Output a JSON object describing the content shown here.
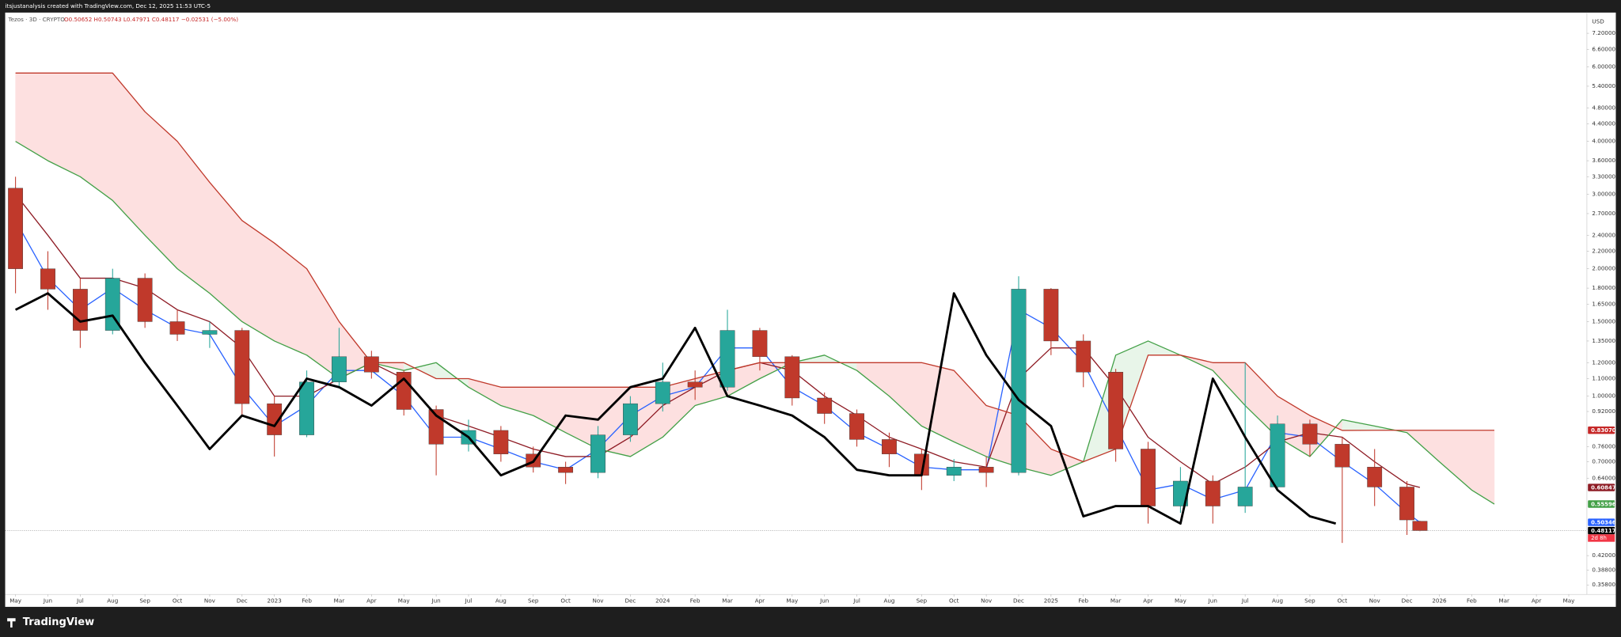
{
  "header": {
    "author_line": "itsjustanalysis created with TradingView.com, Dec 12, 2025 11:53 UTC-5"
  },
  "footer": {
    "brand": "TradingView"
  },
  "chart_data": {
    "type": "candlestick",
    "title": "Tezos · 3D · CRYPTO",
    "ohlc_text": "O0.50652 H0.50743 L0.47971 C0.48117 −0.02531 (−5.00%)",
    "currency": "USD",
    "log_scale": true,
    "grid": false,
    "candles": {
      "x": [
        0,
        1,
        2,
        3,
        4,
        5,
        6,
        7,
        8,
        9,
        10,
        11,
        12,
        13,
        14,
        15,
        16,
        17,
        18,
        19,
        20,
        21,
        22,
        23,
        24,
        25,
        26,
        27,
        28,
        29,
        30,
        31,
        32,
        33,
        34,
        35,
        36,
        37,
        38,
        39,
        40,
        41,
        42,
        43,
        43.4
      ],
      "open": [
        3.1,
        2.0,
        1.79,
        1.43,
        1.9,
        1.5,
        1.4,
        1.43,
        0.96,
        0.81,
        1.08,
        1.24,
        1.14,
        0.93,
        0.77,
        0.83,
        0.73,
        0.68,
        0.66,
        0.81,
        0.96,
        1.08,
        1.05,
        1.43,
        1.24,
        0.99,
        0.91,
        0.79,
        0.73,
        0.65,
        0.68,
        0.66,
        1.79,
        1.35,
        1.14,
        0.75,
        0.55,
        0.63,
        0.55,
        0.61,
        0.86,
        0.77,
        0.68,
        0.61,
        0.50652
      ],
      "high": [
        3.3,
        2.2,
        1.9,
        2.0,
        1.95,
        1.6,
        1.5,
        1.45,
        1.0,
        1.15,
        1.45,
        1.28,
        1.15,
        0.95,
        0.88,
        0.85,
        0.76,
        0.7,
        0.85,
        1.0,
        1.2,
        1.15,
        1.6,
        1.45,
        1.25,
        1.02,
        0.93,
        0.82,
        0.75,
        0.71,
        0.72,
        1.92,
        1.8,
        1.4,
        1.16,
        0.78,
        0.68,
        0.65,
        1.2,
        0.9,
        0.88,
        0.8,
        0.75,
        0.63,
        0.50743
      ],
      "low": [
        1.75,
        1.6,
        1.3,
        1.4,
        1.45,
        1.35,
        1.3,
        0.9,
        0.72,
        0.8,
        1.05,
        1.1,
        0.9,
        0.65,
        0.74,
        0.7,
        0.66,
        0.62,
        0.64,
        0.78,
        0.92,
        0.98,
        1.03,
        1.15,
        0.95,
        0.86,
        0.76,
        0.68,
        0.6,
        0.63,
        0.61,
        0.65,
        1.25,
        1.05,
        0.7,
        0.5,
        0.53,
        0.5,
        0.53,
        0.6,
        0.72,
        0.45,
        0.55,
        0.47,
        0.47971
      ],
      "close": [
        2.0,
        1.79,
        1.43,
        1.9,
        1.5,
        1.4,
        1.43,
        0.96,
        0.81,
        1.08,
        1.24,
        1.14,
        0.93,
        0.77,
        0.83,
        0.73,
        0.68,
        0.66,
        0.81,
        0.96,
        1.08,
        1.05,
        1.43,
        1.24,
        0.99,
        0.91,
        0.79,
        0.73,
        0.65,
        0.68,
        0.66,
        1.79,
        1.35,
        1.14,
        0.75,
        0.55,
        0.63,
        0.55,
        0.61,
        0.86,
        0.77,
        0.68,
        0.61,
        0.51,
        0.48117
      ],
      "up_color": "#26a69a",
      "down_color": "#c0392b"
    },
    "series": [
      {
        "color": "#2962ff",
        "width": 1,
        "x": [
          0,
          1,
          2,
          3,
          4,
          5,
          6,
          7,
          8,
          9,
          10,
          11,
          12,
          13,
          14,
          15,
          16,
          17,
          18,
          19,
          20,
          21,
          22,
          23,
          24,
          25,
          26,
          27,
          28,
          29,
          30,
          31,
          32,
          33,
          34,
          35,
          36,
          37,
          38,
          39,
          40,
          41,
          42,
          43,
          43.4
        ],
        "values": [
          2.6,
          1.9,
          1.6,
          1.8,
          1.6,
          1.45,
          1.4,
          1.05,
          0.85,
          0.95,
          1.15,
          1.15,
          1.0,
          0.8,
          0.8,
          0.75,
          0.7,
          0.67,
          0.75,
          0.9,
          1.0,
          1.05,
          1.3,
          1.3,
          1.05,
          0.95,
          0.82,
          0.75,
          0.68,
          0.67,
          0.67,
          1.6,
          1.45,
          1.2,
          0.85,
          0.6,
          0.62,
          0.57,
          0.6,
          0.82,
          0.8,
          0.7,
          0.62,
          0.53,
          0.50346
        ]
      },
      {
        "color": "#8e1b24",
        "width": 1,
        "x": [
          0,
          1,
          2,
          3,
          4,
          5,
          6,
          7,
          8,
          9,
          10,
          11,
          12,
          13,
          14,
          15,
          16,
          17,
          18,
          19,
          20,
          21,
          22,
          23,
          24,
          25,
          26,
          27,
          28,
          29,
          30,
          31,
          32,
          33,
          34,
          35,
          36,
          37,
          38,
          39,
          40,
          41,
          42,
          43,
          43.4
        ],
        "values": [
          3.0,
          2.4,
          1.9,
          1.9,
          1.8,
          1.6,
          1.5,
          1.3,
          1.0,
          1.0,
          1.1,
          1.2,
          1.1,
          0.9,
          0.85,
          0.8,
          0.75,
          0.72,
          0.72,
          0.8,
          0.95,
          1.05,
          1.15,
          1.2,
          1.15,
          1.0,
          0.9,
          0.8,
          0.75,
          0.7,
          0.68,
          1.1,
          1.3,
          1.3,
          1.05,
          0.8,
          0.7,
          0.62,
          0.68,
          0.78,
          0.82,
          0.8,
          0.7,
          0.62,
          0.60847
        ]
      },
      {
        "color": "#43a047",
        "width": 1,
        "x": [
          0,
          1,
          2,
          3,
          4,
          5,
          6,
          7,
          8,
          9,
          10,
          11,
          12,
          13,
          14,
          15,
          16,
          17,
          18,
          19,
          20,
          21,
          22,
          23,
          24,
          25,
          26,
          27,
          28,
          29,
          30,
          31,
          32,
          33,
          34,
          35,
          36,
          37,
          38,
          39,
          40,
          41,
          42,
          43,
          44,
          45,
          45.7
        ],
        "values": [
          4.0,
          3.6,
          3.3,
          2.9,
          2.4,
          2.0,
          1.75,
          1.5,
          1.35,
          1.25,
          1.1,
          1.2,
          1.15,
          1.2,
          1.05,
          0.95,
          0.9,
          0.82,
          0.75,
          0.72,
          0.8,
          0.95,
          1.0,
          1.1,
          1.2,
          1.25,
          1.15,
          1.0,
          0.85,
          0.78,
          0.72,
          0.68,
          0.65,
          0.7,
          1.25,
          1.35,
          1.25,
          1.15,
          0.95,
          0.8,
          0.72,
          0.88,
          0.85,
          0.82,
          0.7,
          0.6,
          0.55596
        ]
      },
      {
        "color": "#c0392b",
        "width": 1,
        "x": [
          0,
          1,
          2,
          3,
          4,
          5,
          6,
          7,
          8,
          9,
          10,
          11,
          12,
          13,
          14,
          15,
          16,
          17,
          18,
          19,
          20,
          21,
          22,
          23,
          24,
          25,
          26,
          27,
          28,
          29,
          30,
          31,
          32,
          33,
          34,
          35,
          36,
          37,
          38,
          39,
          40,
          41,
          42,
          43,
          44,
          45,
          45.7
        ],
        "values": [
          5.8,
          5.8,
          5.8,
          5.8,
          4.7,
          4.0,
          3.2,
          2.6,
          2.3,
          2.0,
          1.5,
          1.2,
          1.2,
          1.1,
          1.1,
          1.05,
          1.05,
          1.05,
          1.05,
          1.05,
          1.05,
          1.1,
          1.15,
          1.2,
          1.2,
          1.2,
          1.2,
          1.2,
          1.2,
          1.15,
          0.95,
          0.9,
          0.75,
          0.7,
          0.75,
          1.25,
          1.25,
          1.2,
          1.2,
          1.0,
          0.9,
          0.83,
          0.8307,
          0.8307,
          0.8307,
          0.8307,
          0.8307
        ]
      },
      {
        "color": "#000000",
        "width": 2.2,
        "x": [
          0,
          1,
          2,
          3,
          4,
          5,
          6,
          7,
          8,
          9,
          10,
          11,
          12,
          13,
          14,
          15,
          16,
          17,
          18,
          19,
          20,
          21,
          22,
          23,
          24,
          25,
          26,
          27,
          28,
          29,
          30,
          31,
          32,
          33,
          34,
          35,
          36,
          37,
          38,
          39,
          40,
          40.8
        ],
        "values": [
          1.6,
          1.75,
          1.5,
          1.55,
          1.2,
          0.95,
          0.75,
          0.9,
          0.85,
          1.1,
          1.05,
          0.95,
          1.1,
          0.9,
          0.8,
          0.65,
          0.7,
          0.9,
          0.88,
          1.05,
          1.1,
          1.45,
          1.0,
          0.95,
          0.9,
          0.8,
          0.67,
          0.65,
          0.65,
          1.75,
          1.25,
          0.98,
          0.85,
          0.52,
          0.55,
          0.55,
          0.5,
          1.1,
          0.8,
          0.6,
          0.52,
          0.5
        ]
      }
    ],
    "cloud": {
      "between": [
        2,
        3
      ],
      "colors": [
        "#e8f5e9",
        "#fde0e0"
      ]
    },
    "ylim": [
      0.34,
      8.06
    ],
    "yticks": [
      {
        "value": 7.2,
        "label": "7.20000"
      },
      {
        "value": 6.6,
        "label": "6.60000"
      },
      {
        "value": 6.0,
        "label": "6.00000"
      },
      {
        "value": 5.4,
        "label": "5.40000"
      },
      {
        "value": 4.8,
        "label": "4.80000"
      },
      {
        "value": 4.4,
        "label": "4.40000"
      },
      {
        "value": 4.0,
        "label": "4.00000"
      },
      {
        "value": 3.6,
        "label": "3.60000"
      },
      {
        "value": 3.3,
        "label": "3.30000"
      },
      {
        "value": 3.0,
        "label": "3.00000"
      },
      {
        "value": 2.7,
        "label": "2.70000"
      },
      {
        "value": 2.4,
        "label": "2.40000"
      },
      {
        "value": 2.2,
        "label": "2.20000"
      },
      {
        "value": 2.0,
        "label": "2.00000"
      },
      {
        "value": 1.8,
        "label": "1.80000"
      },
      {
        "value": 1.65,
        "label": "1.65000"
      },
      {
        "value": 1.5,
        "label": "1.50000"
      },
      {
        "value": 1.35,
        "label": "1.35000"
      },
      {
        "value": 1.2,
        "label": "1.20000"
      },
      {
        "value": 1.1,
        "label": "1.10000"
      },
      {
        "value": 1.0,
        "label": "1.00000"
      },
      {
        "value": 0.92,
        "label": "0.92000"
      },
      {
        "value": 0.76,
        "label": "0.76000"
      },
      {
        "value": 0.7,
        "label": "0.70000"
      },
      {
        "value": 0.64,
        "label": "0.64000"
      },
      {
        "value": 0.42,
        "label": "0.42000"
      },
      {
        "value": 0.388,
        "label": "0.38800"
      },
      {
        "value": 0.358,
        "label": "0.35800"
      }
    ],
    "xlim": [
      -0.32,
      48.56
    ],
    "xticks": [
      {
        "value": 0,
        "label": "May"
      },
      {
        "value": 1,
        "label": "Jun"
      },
      {
        "value": 2,
        "label": "Jul"
      },
      {
        "value": 3,
        "label": "Aug"
      },
      {
        "value": 4,
        "label": "Sep"
      },
      {
        "value": 5,
        "label": "Oct"
      },
      {
        "value": 6,
        "label": "Nov"
      },
      {
        "value": 7,
        "label": "Dec"
      },
      {
        "value": 8,
        "label": "2023"
      },
      {
        "value": 9,
        "label": "Feb"
      },
      {
        "value": 10,
        "label": "Mar"
      },
      {
        "value": 11,
        "label": "Apr"
      },
      {
        "value": 12,
        "label": "May"
      },
      {
        "value": 13,
        "label": "Jun"
      },
      {
        "value": 14,
        "label": "Jul"
      },
      {
        "value": 15,
        "label": "Aug"
      },
      {
        "value": 16,
        "label": "Sep"
      },
      {
        "value": 17,
        "label": "Oct"
      },
      {
        "value": 18,
        "label": "Nov"
      },
      {
        "value": 19,
        "label": "Dec"
      },
      {
        "value": 20,
        "label": "2024"
      },
      {
        "value": 21,
        "label": "Feb"
      },
      {
        "value": 22,
        "label": "Mar"
      },
      {
        "value": 23,
        "label": "Apr"
      },
      {
        "value": 24,
        "label": "May"
      },
      {
        "value": 25,
        "label": "Jun"
      },
      {
        "value": 26,
        "label": "Jul"
      },
      {
        "value": 27,
        "label": "Aug"
      },
      {
        "value": 28,
        "label": "Sep"
      },
      {
        "value": 29,
        "label": "Oct"
      },
      {
        "value": 30,
        "label": "Nov"
      },
      {
        "value": 31,
        "label": "Dec"
      },
      {
        "value": 32,
        "label": "2025"
      },
      {
        "value": 33,
        "label": "Feb"
      },
      {
        "value": 34,
        "label": "Mar"
      },
      {
        "value": 35,
        "label": "Apr"
      },
      {
        "value": 36,
        "label": "May"
      },
      {
        "value": 37,
        "label": "Jun"
      },
      {
        "value": 38,
        "label": "Jul"
      },
      {
        "value": 39,
        "label": "Aug"
      },
      {
        "value": 40,
        "label": "Sep"
      },
      {
        "value": 41,
        "label": "Oct"
      },
      {
        "value": 42,
        "label": "Nov"
      },
      {
        "value": 43,
        "label": "Dec"
      },
      {
        "value": 44,
        "label": "2026"
      },
      {
        "value": 45,
        "label": "Feb"
      },
      {
        "value": 46,
        "label": "Mar"
      },
      {
        "value": 47,
        "label": "Apr"
      },
      {
        "value": 48,
        "label": "May"
      }
    ],
    "price_tags": [
      {
        "value": 0.8307,
        "label": "0.83070",
        "color": "#c62828"
      },
      {
        "value": 0.60847,
        "label": "0.60847",
        "color": "#8e1b24"
      },
      {
        "value": 0.55596,
        "label": "0.55596",
        "color": "#43a047"
      },
      {
        "value": 0.50346,
        "label": "0.50346",
        "color": "#2962ff"
      },
      {
        "value": 0.48117,
        "label": "0.48117",
        "color": "#000000"
      }
    ],
    "countdown": "2d 8h",
    "countdown_color": "#f23645"
  }
}
